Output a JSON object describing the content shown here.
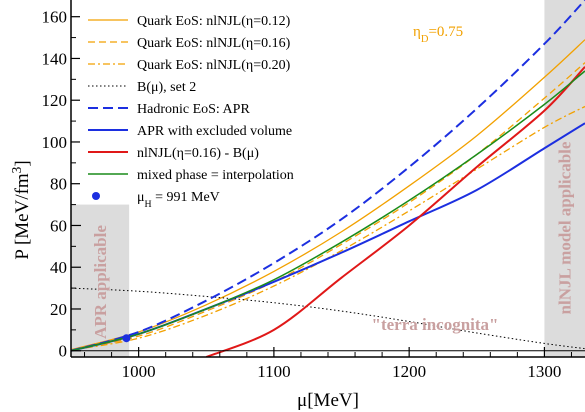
{
  "chart_data": {
    "type": "line",
    "xlabel": "μ[MeV]",
    "ylabel": "P [MeV/fm",
    "ylabel_sup": "3",
    "ylabel_close": "]",
    "xlim": [
      950,
      1330
    ],
    "ylim": [
      -3,
      168
    ],
    "xticks": [
      1000,
      1100,
      1200,
      1300
    ],
    "yticks": [
      0,
      20,
      40,
      60,
      80,
      100,
      120,
      140,
      160
    ],
    "grid": false,
    "legend_position": "top-left",
    "annotation_eta": "η",
    "annotation_eta_sub": "D",
    "annotation_eta_val": "=0.75",
    "annotation_terra": "\"terra incognita\"",
    "regions": [
      {
        "label": "APR applicable",
        "x": [
          950,
          993
        ],
        "ymax": 70
      },
      {
        "label": "nlNJL model applicable",
        "x": [
          1300,
          1330
        ],
        "ymax": 168
      }
    ],
    "series": [
      {
        "name": "Quark EoS: nlNJL(η=0.12)",
        "color": "#f2a100",
        "style": "solid",
        "width": 1.3,
        "x": [
          950,
          1000,
          1050,
          1100,
          1150,
          1200,
          1250,
          1300,
          1330
        ],
        "y": [
          0.5,
          9,
          22,
          38,
          57,
          79,
          103,
          131,
          149
        ]
      },
      {
        "name": "Quark EoS: nlNJL(η=0.16)",
        "color": "#f2a100",
        "style": "dash",
        "width": 1.3,
        "x": [
          950,
          1000,
          1050,
          1100,
          1150,
          1200,
          1250,
          1300,
          1330
        ],
        "y": [
          0.4,
          7,
          19,
          33,
          51,
          71,
          94,
          121,
          138
        ]
      },
      {
        "name": "Quark EoS: nlNJL(η=0.20)",
        "color": "#f2a100",
        "style": "dashdot",
        "width": 1.3,
        "x": [
          950,
          1000,
          1050,
          1100,
          1150,
          1200,
          1250,
          1300,
          1330
        ],
        "y": [
          0.3,
          6,
          17,
          31,
          48,
          67,
          87,
          107,
          117
        ]
      },
      {
        "name": "B(μ), set 2",
        "color": "#000000",
        "style": "dot",
        "width": 1,
        "x": [
          950,
          1000,
          1050,
          1100,
          1150,
          1200,
          1250,
          1300,
          1330
        ],
        "y": [
          30,
          28.5,
          26,
          23,
          19,
          14,
          8.5,
          3.5,
          1
        ]
      },
      {
        "name": "Hadronic EoS: APR",
        "color": "#1c2fe0",
        "style": "longdash",
        "width": 2,
        "x": [
          950,
          1000,
          1050,
          1100,
          1150,
          1200,
          1250,
          1300,
          1330
        ],
        "y": [
          0,
          9,
          24,
          42,
          63,
          88,
          116,
          147,
          168
        ]
      },
      {
        "name": "APR with excluded volume",
        "color": "#1c2fe0",
        "style": "solid",
        "width": 2,
        "x": [
          950,
          1000,
          1050,
          1100,
          1150,
          1200,
          1250,
          1300,
          1330
        ],
        "y": [
          0,
          8,
          20,
          33,
          47,
          62,
          77,
          97,
          109
        ]
      },
      {
        "name": "nlNJL(η=0.16) - B(μ)",
        "color": "#e01818",
        "style": "solid",
        "width": 2,
        "x": [
          1050,
          1100,
          1150,
          1200,
          1250,
          1300,
          1330
        ],
        "y": [
          -3,
          10,
          35,
          60,
          88,
          115,
          136
        ]
      },
      {
        "name": "mixed phase = interpolation",
        "color": "#1a8c1a",
        "style": "solid",
        "width": 1.5,
        "x": [
          950,
          1000,
          1050,
          1100,
          1150,
          1200,
          1250,
          1300,
          1330
        ],
        "y": [
          0,
          8,
          20,
          34,
          52,
          72,
          94,
          118,
          134
        ]
      }
    ],
    "point": {
      "name": "μ",
      "name_sub": "H",
      "name_rest": " = 991 MeV",
      "color": "#1c2fe0",
      "x": 991,
      "y": 6
    }
  }
}
